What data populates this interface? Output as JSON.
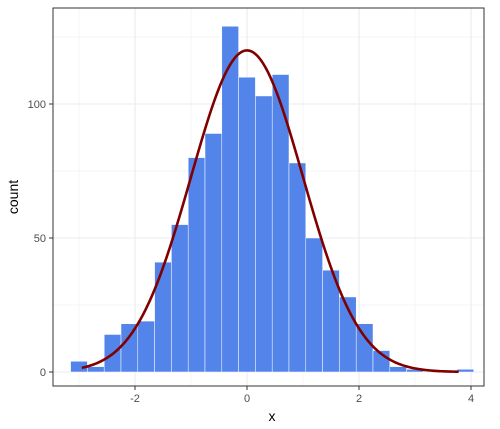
{
  "chart_data": {
    "type": "bar",
    "title": "",
    "xlabel": "x",
    "ylabel": "count",
    "xlim": [
      -3.3,
      4.3
    ],
    "ylim": [
      -4,
      131
    ],
    "grid": true,
    "legend": "none",
    "bin_width": 0.3,
    "bins": [
      {
        "x0": -3.15,
        "x1": -2.85,
        "count": 4
      },
      {
        "x0": -2.85,
        "x1": -2.55,
        "count": 2
      },
      {
        "x0": -2.55,
        "x1": -2.25,
        "count": 14
      },
      {
        "x0": -2.25,
        "x1": -1.95,
        "count": 18
      },
      {
        "x0": -1.95,
        "x1": -1.65,
        "count": 19
      },
      {
        "x0": -1.65,
        "x1": -1.35,
        "count": 41
      },
      {
        "x0": -1.35,
        "x1": -1.05,
        "count": 55
      },
      {
        "x0": -1.05,
        "x1": -0.75,
        "count": 80
      },
      {
        "x0": -0.75,
        "x1": -0.45,
        "count": 89
      },
      {
        "x0": -0.45,
        "x1": -0.15,
        "count": 129
      },
      {
        "x0": -0.15,
        "x1": 0.15,
        "count": 110
      },
      {
        "x0": 0.15,
        "x1": 0.45,
        "count": 103
      },
      {
        "x0": 0.45,
        "x1": 0.75,
        "count": 111
      },
      {
        "x0": 0.75,
        "x1": 1.05,
        "count": 78
      },
      {
        "x0": 1.05,
        "x1": 1.35,
        "count": 50
      },
      {
        "x0": 1.35,
        "x1": 1.65,
        "count": 38
      },
      {
        "x0": 1.65,
        "x1": 1.95,
        "count": 28
      },
      {
        "x0": 1.95,
        "x1": 2.25,
        "count": 18
      },
      {
        "x0": 2.25,
        "x1": 2.55,
        "count": 8
      },
      {
        "x0": 2.55,
        "x1": 2.85,
        "count": 2
      },
      {
        "x0": 2.85,
        "x1": 3.15,
        "count": 1
      },
      {
        "x0": 3.15,
        "x1": 3.45,
        "count": 0
      },
      {
        "x0": 3.45,
        "x1": 3.75,
        "count": 0
      },
      {
        "x0": 3.75,
        "x1": 4.05,
        "count": 1
      }
    ],
    "density_curve": {
      "mean": 0,
      "sd": 1,
      "peak_count": 120,
      "x_range": [
        -2.95,
        3.78
      ]
    },
    "x_ticks": [
      {
        "value": -2,
        "label": "-2"
      },
      {
        "value": 0,
        "label": "0"
      },
      {
        "value": 2,
        "label": "2"
      },
      {
        "value": 4,
        "label": "4"
      }
    ],
    "y_ticks": [
      {
        "value": 0,
        "label": "0"
      },
      {
        "value": 50,
        "label": "50"
      },
      {
        "value": 100,
        "label": "100"
      }
    ],
    "colors": {
      "bar_fill": "#5384ea",
      "bar_outline": "#ffffff",
      "curve": "#800000",
      "grid_major": "#ebebeb",
      "grid_minor": "#f5f5f5",
      "panel_border": "#333333"
    }
  }
}
